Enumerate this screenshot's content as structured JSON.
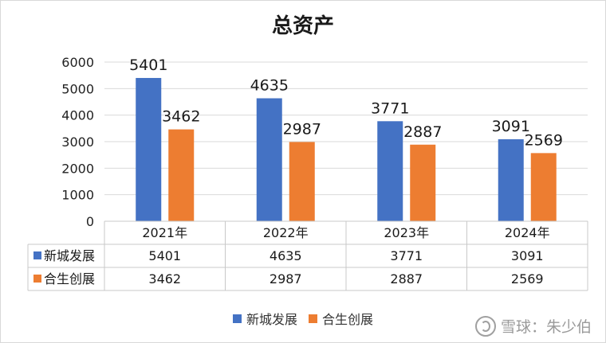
{
  "chart_data": {
    "type": "bar",
    "title": "总资产",
    "categories": [
      "2021年",
      "2022年",
      "2023年",
      "2024年"
    ],
    "series": [
      {
        "name": "新城发展",
        "values": [
          5401,
          4635,
          3771,
          3091
        ],
        "color": "#4472C4"
      },
      {
        "name": "合生创展",
        "values": [
          3462,
          2987,
          2887,
          2569
        ],
        "color": "#ED7D31"
      }
    ],
    "ylim": [
      0,
      6000
    ],
    "yticks": [
      0,
      1000,
      2000,
      3000,
      4000,
      5000,
      6000
    ],
    "grid": true,
    "data_table": true,
    "legend_position": "bottom"
  },
  "watermark": {
    "text": "雪球：朱少伯"
  }
}
